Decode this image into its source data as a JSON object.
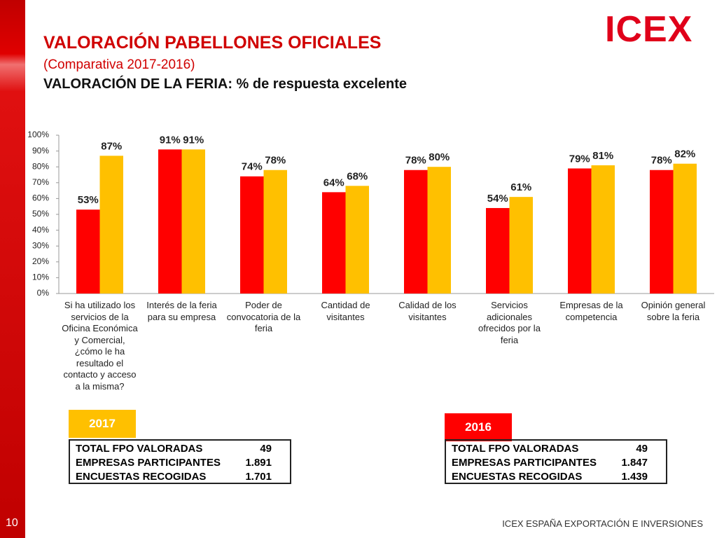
{
  "logo": "ICEX",
  "header": {
    "title": "VALORACIÓN PABELLONES OFICIALES",
    "subtitle": "(Comparativa 2017-2016)",
    "heading": "VALORACIÓN DE LA FERIA: % de respuesta excelente"
  },
  "chart_data": {
    "type": "bar",
    "categories": [
      "Si ha utilizado los servicios de la Oficina Económica y Comercial, ¿cómo le ha resultado el contacto y acceso a la misma?",
      "Interés de la feria para su empresa",
      "Poder de convocatoria de la feria",
      "Cantidad de visitantes",
      "Calidad de los visitantes",
      "Servicios adicionales ofrecidos por la feria",
      "Empresas de la competencia",
      "Opinión general sobre la feria"
    ],
    "series": [
      {
        "color": "#ff0000",
        "values": [
          53,
          91,
          74,
          64,
          78,
          54,
          79,
          78
        ],
        "value_labels": [
          "53%",
          "91%",
          "74%",
          "64%",
          "78%",
          "54%",
          "79%",
          "78%"
        ]
      },
      {
        "color": "#ffc000",
        "values": [
          87,
          91,
          78,
          68,
          80,
          61,
          81,
          82
        ],
        "value_labels": [
          "87%",
          "91%",
          "78%",
          "68%",
          "80%",
          "61%",
          "81%",
          "82%"
        ]
      }
    ],
    "ylim": [
      0,
      100
    ],
    "yticks": [
      {
        "value": 0,
        "label": "0%"
      },
      {
        "value": 10,
        "label": "10%"
      },
      {
        "value": 20,
        "label": "20%"
      },
      {
        "value": 30,
        "label": "30%"
      },
      {
        "value": 40,
        "label": "40%"
      },
      {
        "value": 50,
        "label": "50%"
      },
      {
        "value": 60,
        "label": "60%"
      },
      {
        "value": 70,
        "label": "70%"
      },
      {
        "value": 80,
        "label": "80%"
      },
      {
        "value": 90,
        "label": "90%"
      },
      {
        "value": 100,
        "label": "100%"
      }
    ]
  },
  "panels": [
    {
      "tab": "2017",
      "rows": [
        [
          "TOTAL FPO VALORADAS",
          "49"
        ],
        [
          "EMPRESAS PARTICIPANTES",
          "1.891"
        ],
        [
          "ENCUESTAS RECOGIDAS",
          "1.701"
        ]
      ]
    },
    {
      "tab": "2016",
      "rows": [
        [
          "TOTAL FPO VALORADAS",
          "49"
        ],
        [
          "EMPRESAS PARTICIPANTES",
          "1.847"
        ],
        [
          "ENCUESTAS RECOGIDAS",
          "1.439"
        ]
      ]
    }
  ],
  "footer": {
    "page": "10",
    "text": "ICEX ESPAÑA EXPORTACIÓN E INVERSIONES"
  }
}
